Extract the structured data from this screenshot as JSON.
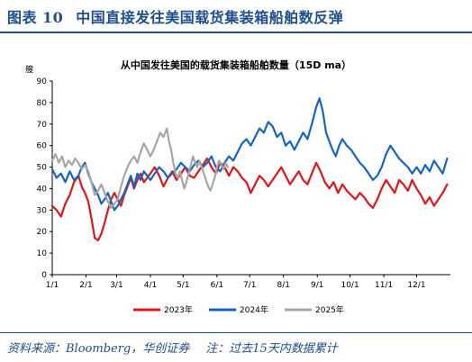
{
  "figure": {
    "label": "图表",
    "number": "10",
    "title": "中国直接发往美国载货集装箱船舶数反弹"
  },
  "footer": {
    "source": "资料来源：Bloomberg，华创证券",
    "note": "注：过去15天内数据累计"
  },
  "chart_data": {
    "type": "line",
    "title": "从中国发往美国的载货集装箱船舶数量（15D ma）",
    "ylabel": "艘",
    "xlabel": "",
    "ylim": [
      0,
      90
    ],
    "yticks": [
      0,
      10,
      20,
      30,
      40,
      50,
      60,
      70,
      80,
      90
    ],
    "x_tick_labels": [
      "1/1",
      "2/1",
      "3/1",
      "4/1",
      "5/1",
      "6/1",
      "7/1",
      "8/1",
      "9/1",
      "10/1",
      "11/1",
      "12/1"
    ],
    "x_tick_days": [
      1,
      32,
      60,
      91,
      121,
      152,
      182,
      213,
      244,
      274,
      305,
      335
    ],
    "xlim_days": [
      1,
      366
    ],
    "grid": false,
    "legend_position": "bottom",
    "series": [
      {
        "name": "2023年",
        "color": "#e0161b",
        "points": [
          [
            1,
            32
          ],
          [
            5,
            30
          ],
          [
            9,
            27
          ],
          [
            13,
            33
          ],
          [
            17,
            37
          ],
          [
            21,
            43
          ],
          [
            25,
            46
          ],
          [
            28,
            41
          ],
          [
            31,
            38
          ],
          [
            34,
            34
          ],
          [
            37,
            26
          ],
          [
            40,
            17
          ],
          [
            43,
            16
          ],
          [
            46,
            19
          ],
          [
            49,
            24
          ],
          [
            52,
            30
          ],
          [
            55,
            35
          ],
          [
            58,
            38
          ],
          [
            61,
            35
          ],
          [
            64,
            32
          ],
          [
            67,
            37
          ],
          [
            70,
            41
          ],
          [
            73,
            45
          ],
          [
            76,
            40
          ],
          [
            79,
            44
          ],
          [
            82,
            47
          ],
          [
            85,
            43
          ],
          [
            88,
            45
          ],
          [
            91,
            47
          ],
          [
            95,
            50
          ],
          [
            99,
            46
          ],
          [
            103,
            41
          ],
          [
            107,
            45
          ],
          [
            111,
            48
          ],
          [
            115,
            44
          ],
          [
            119,
            47
          ],
          [
            123,
            50
          ],
          [
            127,
            46
          ],
          [
            131,
            45
          ],
          [
            135,
            48
          ],
          [
            139,
            51
          ],
          [
            143,
            54
          ],
          [
            147,
            50
          ],
          [
            151,
            47
          ],
          [
            155,
            52
          ],
          [
            159,
            50
          ],
          [
            163,
            46
          ],
          [
            167,
            50
          ],
          [
            171,
            48
          ],
          [
            175,
            45
          ],
          [
            179,
            43
          ],
          [
            183,
            38
          ],
          [
            187,
            42
          ],
          [
            191,
            46
          ],
          [
            195,
            44
          ],
          [
            199,
            41
          ],
          [
            203,
            44
          ],
          [
            207,
            47
          ],
          [
            211,
            50
          ],
          [
            215,
            46
          ],
          [
            219,
            42
          ],
          [
            223,
            45
          ],
          [
            227,
            48
          ],
          [
            231,
            44
          ],
          [
            235,
            42
          ],
          [
            239,
            47
          ],
          [
            243,
            52
          ],
          [
            247,
            48
          ],
          [
            251,
            43
          ],
          [
            255,
            40
          ],
          [
            259,
            43
          ],
          [
            263,
            38
          ],
          [
            267,
            42
          ],
          [
            271,
            39
          ],
          [
            275,
            37
          ],
          [
            279,
            35
          ],
          [
            283,
            38
          ],
          [
            287,
            36
          ],
          [
            291,
            33
          ],
          [
            295,
            31
          ],
          [
            299,
            35
          ],
          [
            303,
            40
          ],
          [
            307,
            44
          ],
          [
            311,
            41
          ],
          [
            315,
            38
          ],
          [
            319,
            44
          ],
          [
            323,
            42
          ],
          [
            327,
            39
          ],
          [
            331,
            44
          ],
          [
            335,
            40
          ],
          [
            339,
            37
          ],
          [
            343,
            33
          ],
          [
            347,
            36
          ],
          [
            351,
            32
          ],
          [
            355,
            35
          ],
          [
            359,
            38
          ],
          [
            363,
            42
          ]
        ]
      },
      {
        "name": "2024年",
        "color": "#1565c0",
        "points": [
          [
            1,
            49
          ],
          [
            5,
            45
          ],
          [
            9,
            47
          ],
          [
            13,
            43
          ],
          [
            17,
            48
          ],
          [
            21,
            44
          ],
          [
            25,
            46
          ],
          [
            28,
            50
          ],
          [
            31,
            52
          ],
          [
            34,
            47
          ],
          [
            37,
            43
          ],
          [
            40,
            40
          ],
          [
            43,
            37
          ],
          [
            46,
            33
          ],
          [
            49,
            35
          ],
          [
            52,
            38
          ],
          [
            55,
            34
          ],
          [
            58,
            30
          ],
          [
            61,
            32
          ],
          [
            64,
            35
          ],
          [
            67,
            38
          ],
          [
            70,
            42
          ],
          [
            73,
            46
          ],
          [
            76,
            41
          ],
          [
            79,
            47
          ],
          [
            82,
            44
          ],
          [
            85,
            48
          ],
          [
            88,
            46
          ],
          [
            91,
            44
          ],
          [
            95,
            47
          ],
          [
            99,
            50
          ],
          [
            103,
            48
          ],
          [
            107,
            45
          ],
          [
            111,
            47
          ],
          [
            115,
            49
          ],
          [
            119,
            52
          ],
          [
            123,
            50
          ],
          [
            127,
            48
          ],
          [
            131,
            51
          ],
          [
            135,
            53
          ],
          [
            139,
            50
          ],
          [
            143,
            52
          ],
          [
            147,
            55
          ],
          [
            151,
            50
          ],
          [
            155,
            48
          ],
          [
            159,
            52
          ],
          [
            163,
            55
          ],
          [
            167,
            53
          ],
          [
            171,
            57
          ],
          [
            175,
            61
          ],
          [
            179,
            63
          ],
          [
            183,
            60
          ],
          [
            187,
            64
          ],
          [
            191,
            68
          ],
          [
            195,
            66
          ],
          [
            199,
            71
          ],
          [
            203,
            69
          ],
          [
            207,
            64
          ],
          [
            211,
            66
          ],
          [
            215,
            60
          ],
          [
            219,
            62
          ],
          [
            223,
            58
          ],
          [
            227,
            62
          ],
          [
            231,
            66
          ],
          [
            235,
            63
          ],
          [
            239,
            70
          ],
          [
            243,
            78
          ],
          [
            246,
            82
          ],
          [
            249,
            76
          ],
          [
            252,
            66
          ],
          [
            255,
            62
          ],
          [
            258,
            58
          ],
          [
            261,
            55
          ],
          [
            264,
            60
          ],
          [
            267,
            63
          ],
          [
            271,
            60
          ],
          [
            275,
            58
          ],
          [
            279,
            55
          ],
          [
            283,
            52
          ],
          [
            287,
            50
          ],
          [
            291,
            47
          ],
          [
            295,
            44
          ],
          [
            299,
            46
          ],
          [
            303,
            50
          ],
          [
            307,
            56
          ],
          [
            311,
            60
          ],
          [
            315,
            57
          ],
          [
            319,
            54
          ],
          [
            323,
            52
          ],
          [
            327,
            50
          ],
          [
            331,
            47
          ],
          [
            335,
            50
          ],
          [
            339,
            47
          ],
          [
            343,
            51
          ],
          [
            347,
            48
          ],
          [
            351,
            53
          ],
          [
            355,
            50
          ],
          [
            359,
            47
          ],
          [
            363,
            54
          ]
        ]
      },
      {
        "name": "2025年",
        "color": "#a6a6a6",
        "points": [
          [
            1,
            53
          ],
          [
            4,
            56
          ],
          [
            7,
            52
          ],
          [
            10,
            55
          ],
          [
            13,
            50
          ],
          [
            16,
            53
          ],
          [
            19,
            51
          ],
          [
            22,
            54
          ],
          [
            25,
            52
          ],
          [
            28,
            49
          ],
          [
            31,
            51
          ],
          [
            34,
            48
          ],
          [
            37,
            43
          ],
          [
            40,
            37
          ],
          [
            43,
            39
          ],
          [
            46,
            42
          ],
          [
            49,
            38
          ],
          [
            52,
            34
          ],
          [
            55,
            31
          ],
          [
            58,
            33
          ],
          [
            61,
            35
          ],
          [
            64,
            41
          ],
          [
            67,
            46
          ],
          [
            70,
            50
          ],
          [
            73,
            53
          ],
          [
            76,
            55
          ],
          [
            79,
            52
          ],
          [
            82,
            57
          ],
          [
            85,
            61
          ],
          [
            88,
            58
          ],
          [
            91,
            55
          ],
          [
            94,
            58
          ],
          [
            97,
            62
          ],
          [
            100,
            66
          ],
          [
            103,
            64
          ],
          [
            106,
            68
          ],
          [
            108,
            62
          ],
          [
            110,
            58
          ],
          [
            112,
            52
          ],
          [
            114,
            47
          ],
          [
            116,
            45
          ],
          [
            118,
            48
          ],
          [
            120,
            44
          ],
          [
            122,
            40
          ],
          [
            124,
            43
          ],
          [
            126,
            47
          ],
          [
            128,
            51
          ],
          [
            130,
            55
          ],
          [
            132,
            52
          ],
          [
            134,
            50
          ],
          [
            136,
            53
          ],
          [
            138,
            50
          ],
          [
            140,
            47
          ],
          [
            142,
            44
          ],
          [
            144,
            41
          ],
          [
            146,
            39
          ],
          [
            148,
            42
          ],
          [
            150,
            45
          ],
          [
            152,
            50
          ],
          [
            154,
            53
          ],
          [
            156,
            51
          ],
          [
            158,
            49
          ],
          [
            160,
            52
          ],
          [
            162,
            50
          ]
        ]
      }
    ]
  }
}
